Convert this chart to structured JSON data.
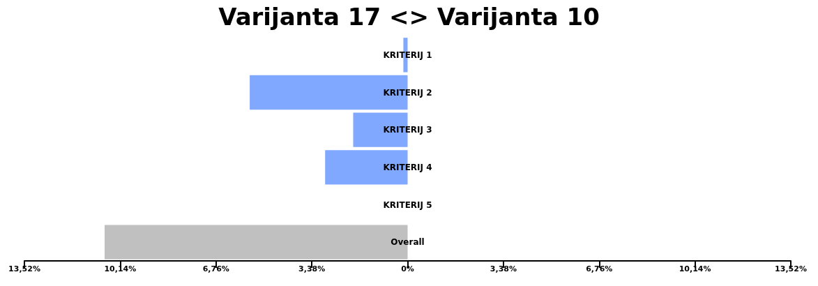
{
  "chart_data": {
    "type": "bar",
    "orientation": "horizontal",
    "title": "Varijanta 17 <> Varijanta 10",
    "categories": [
      "KRITERIJ 1",
      "KRITERIJ 2",
      "KRITERIJ 3",
      "KRITERIJ 4",
      "KRITERIJ 5",
      "Overall"
    ],
    "values": [
      -0.15,
      -5.57,
      -1.92,
      -2.91,
      0,
      -10.69
    ],
    "colors": [
      "#80a8ff",
      "#80a8ff",
      "#80a8ff",
      "#80a8ff",
      "#80a8ff",
      "#c0c0c0"
    ],
    "xlim": [
      -13.52,
      13.52
    ],
    "xticks": [
      {
        "value": -13.52,
        "label": "13,52%"
      },
      {
        "value": -10.14,
        "label": "10,14%"
      },
      {
        "value": -6.76,
        "label": "6,76%"
      },
      {
        "value": -3.38,
        "label": "3,38%"
      },
      {
        "value": 0,
        "label": "0%"
      },
      {
        "value": 3.38,
        "label": "3,38%"
      },
      {
        "value": 6.76,
        "label": "6,76%"
      },
      {
        "value": 10.14,
        "label": "10,14%"
      },
      {
        "value": 13.52,
        "label": "13,52%"
      }
    ],
    "grid": false
  }
}
